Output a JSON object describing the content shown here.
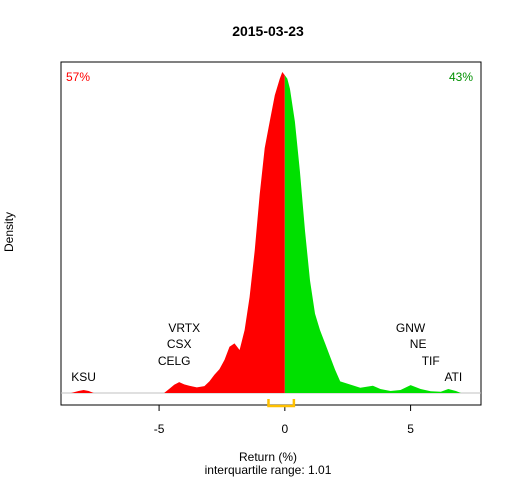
{
  "chart_data": {
    "type": "area",
    "title": "2015-03-23",
    "xlabel": "Return (%)",
    "subtitle": "interquartile range: 1.01",
    "ylabel": "Density",
    "xlim": [
      -8.9,
      7.8
    ],
    "ylim": [
      0,
      1.0
    ],
    "xticks": [
      -5,
      0,
      5
    ],
    "pct_negative": "57%",
    "pct_positive": "43%",
    "colors": {
      "negative": "#ff0000",
      "positive": "#00e000",
      "iqr": "#ffc000",
      "text": "#000000",
      "baseline": "#c0c0c0"
    },
    "iqr": [
      -0.65,
      0.36
    ],
    "labels_left": [
      {
        "text": "KSU",
        "x": -8.0,
        "level": 0
      },
      {
        "text": "CELG",
        "x": -4.4,
        "level": 1
      },
      {
        "text": "CSX",
        "x": -4.2,
        "level": 2
      },
      {
        "text": "VRTX",
        "x": -4.0,
        "level": 3
      }
    ],
    "labels_right": [
      {
        "text": "ATI",
        "x": 6.7,
        "level": 0
      },
      {
        "text": "TIF",
        "x": 5.8,
        "level": 1
      },
      {
        "text": "NE",
        "x": 5.3,
        "level": 2
      },
      {
        "text": "GNW",
        "x": 5.0,
        "level": 3
      }
    ],
    "density": {
      "x": [
        -8.5,
        -8.2,
        -8.0,
        -7.8,
        -7.6,
        -4.8,
        -4.6,
        -4.4,
        -4.2,
        -4.0,
        -3.8,
        -3.5,
        -3.2,
        -3.0,
        -2.8,
        -2.6,
        -2.4,
        -2.2,
        -2.0,
        -1.8,
        -1.6,
        -1.4,
        -1.2,
        -1.0,
        -0.8,
        -0.6,
        -0.4,
        -0.2,
        -0.1,
        0.0,
        0.1,
        0.2,
        0.4,
        0.6,
        0.8,
        1.0,
        1.2,
        1.4,
        1.6,
        1.8,
        2.0,
        2.2,
        2.5,
        3.0,
        3.5,
        3.8,
        4.2,
        4.6,
        5.0,
        5.4,
        5.8,
        6.2,
        6.5,
        6.8,
        7.0
      ],
      "y": [
        0.0,
        0.006,
        0.009,
        0.006,
        0.0,
        0.0,
        0.012,
        0.025,
        0.033,
        0.026,
        0.022,
        0.017,
        0.021,
        0.035,
        0.055,
        0.072,
        0.1,
        0.14,
        0.15,
        0.13,
        0.19,
        0.29,
        0.43,
        0.6,
        0.74,
        0.82,
        0.9,
        0.95,
        0.97,
        0.96,
        0.95,
        0.92,
        0.82,
        0.67,
        0.49,
        0.34,
        0.24,
        0.19,
        0.15,
        0.11,
        0.07,
        0.035,
        0.028,
        0.016,
        0.022,
        0.012,
        0.006,
        0.009,
        0.024,
        0.012,
        0.005,
        0.004,
        0.012,
        0.006,
        0.0
      ]
    }
  }
}
